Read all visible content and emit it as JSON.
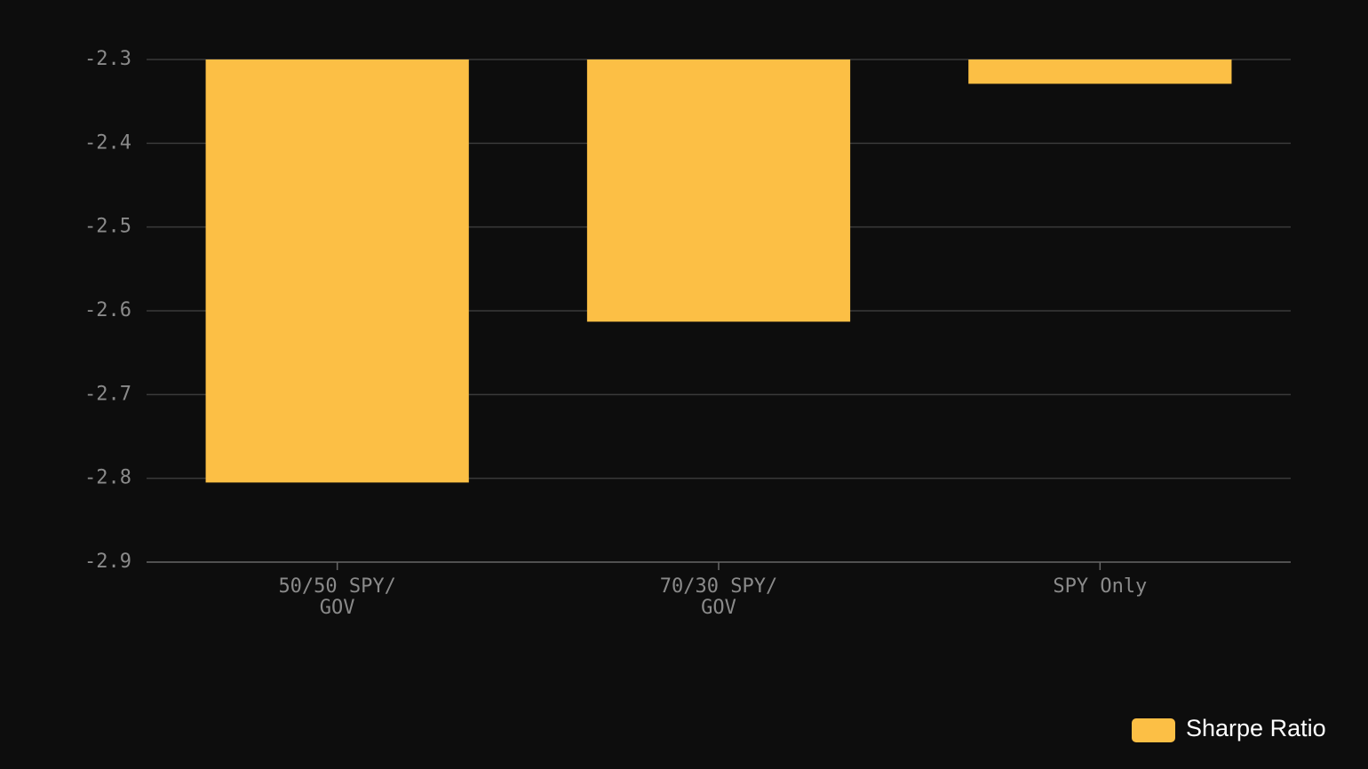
{
  "chart_data": {
    "type": "bar",
    "categories": [
      "50/50 SPY/GOV",
      "70/30 SPY/GOV",
      "SPY Only"
    ],
    "series": [
      {
        "name": "Sharpe Ratio",
        "color": "#fcbf45",
        "values": [
          -2.805,
          -2.613,
          -2.329
        ]
      }
    ],
    "ylim": [
      -2.9,
      -2.3
    ],
    "yticks": [
      -2.9,
      -2.8,
      -2.7,
      -2.6,
      -2.5,
      -2.4,
      -2.3
    ],
    "grid": true,
    "legend": "bottom-right"
  }
}
